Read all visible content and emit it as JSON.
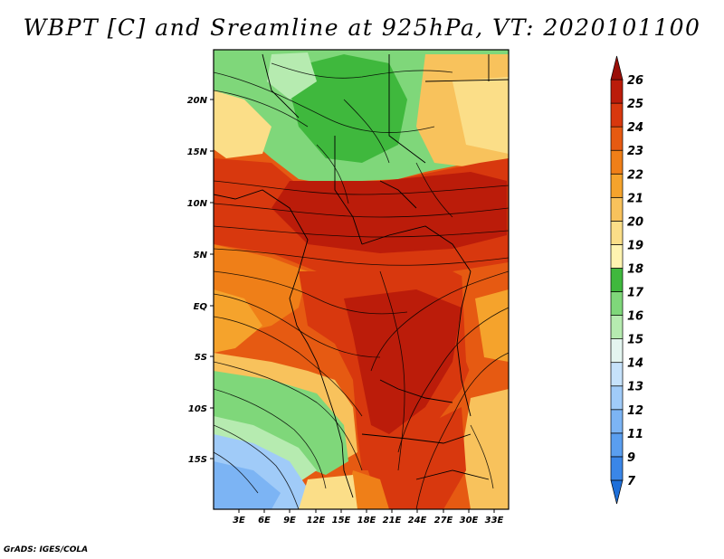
{
  "title": "WBPT [C] and Sreamline at 925hPa, VT: 2020101100",
  "footer": "GrADS: IGES/COLA",
  "axes": {
    "lat_labels": [
      "20N",
      "15N",
      "10N",
      "5N",
      "EQ",
      "5S",
      "10S",
      "15S"
    ],
    "lon_labels": [
      "3E",
      "6E",
      "9E",
      "12E",
      "15E",
      "18E",
      "21E",
      "24E",
      "27E",
      "30E",
      "33E"
    ]
  },
  "colorbar": {
    "levels": [
      "7",
      "9",
      "11",
      "12",
      "13",
      "14",
      "15",
      "16",
      "17",
      "18",
      "19",
      "20",
      "21",
      "22",
      "23",
      "24",
      "25",
      "26"
    ],
    "colors": [
      "#1e6fd9",
      "#3a86e8",
      "#5a9eef",
      "#7cb4f4",
      "#a0cbf8",
      "#c6e2fb",
      "#e4f5f0",
      "#b6ebb0",
      "#7fd77a",
      "#3fb83d",
      "#fff3b0",
      "#fbde88",
      "#f8c25c",
      "#f5a32c",
      "#ef7f18",
      "#e65a12",
      "#d8380e",
      "#bb1c0a",
      "#9a0f08"
    ]
  },
  "map_zones": [
    {
      "name": "sahel-green-zone",
      "color": "#7fd77a"
    },
    {
      "name": "north-hot-band",
      "color": "#d8380e"
    },
    {
      "name": "congo-warm-core",
      "color": "#bb1c0a"
    },
    {
      "name": "southwest-cool-zone",
      "color": "#7cb4f4"
    }
  ],
  "icons": {
    "min_arrow": "triangle-down",
    "max_arrow": "triangle-up"
  }
}
